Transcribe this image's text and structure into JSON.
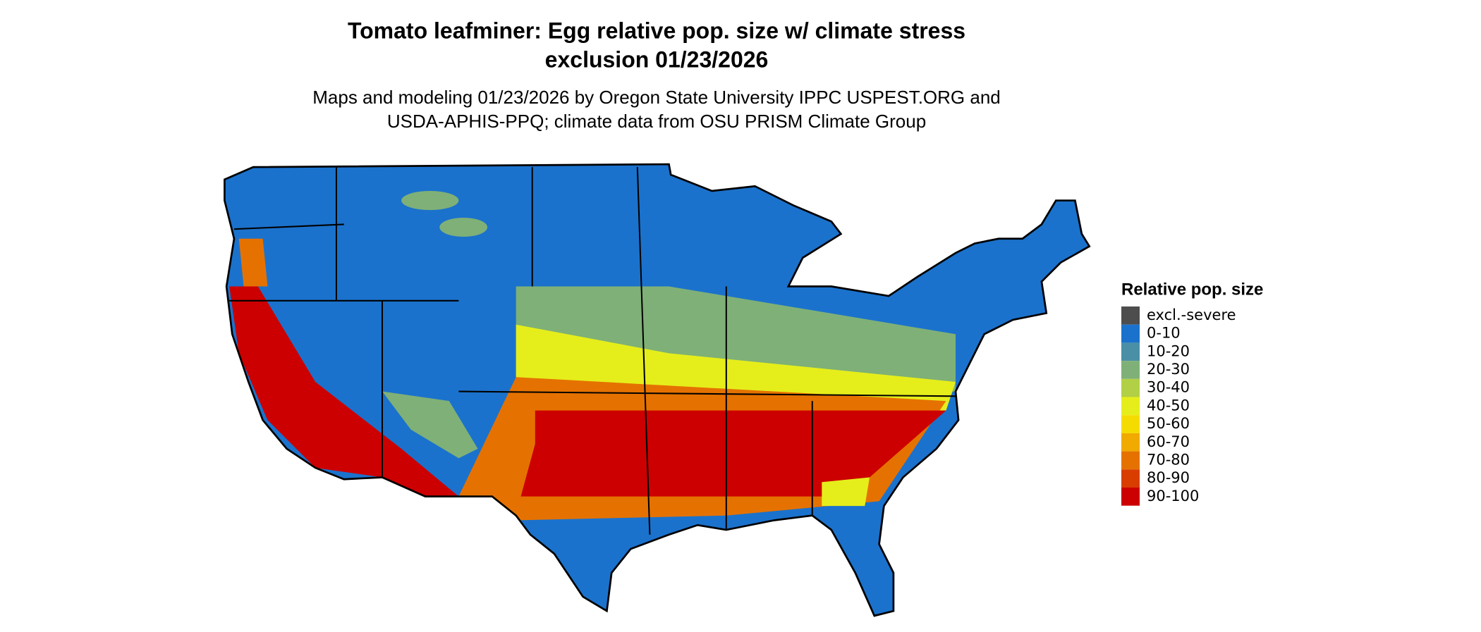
{
  "header": {
    "title_lines": [
      "Tomato leafminer: Egg relative pop. size w/ climate stress",
      "exclusion 01/23/2026"
    ],
    "subtitle_lines": [
      "Maps and modeling 01/23/2026 by Oregon State University IPPC USPEST.ORG and",
      "USDA-APHIS-PPQ; climate data from OSU PRISM Climate Group"
    ]
  },
  "legend": {
    "title": "Relative pop. size",
    "items": [
      {
        "label": "excl.-severe",
        "color": "#4d4d4d"
      },
      {
        "label": "0-10",
        "color": "#1b72cc"
      },
      {
        "label": "10-20",
        "color": "#4a8fa6"
      },
      {
        "label": "20-30",
        "color": "#7fb077"
      },
      {
        "label": "30-40",
        "color": "#b2d045"
      },
      {
        "label": "40-50",
        "color": "#e5ee1b"
      },
      {
        "label": "50-60",
        "color": "#f5dc00"
      },
      {
        "label": "60-70",
        "color": "#f0aa00"
      },
      {
        "label": "70-80",
        "color": "#e57200"
      },
      {
        "label": "80-90",
        "color": "#d93d00"
      },
      {
        "label": "90-100",
        "color": "#cc0000"
      }
    ]
  }
}
